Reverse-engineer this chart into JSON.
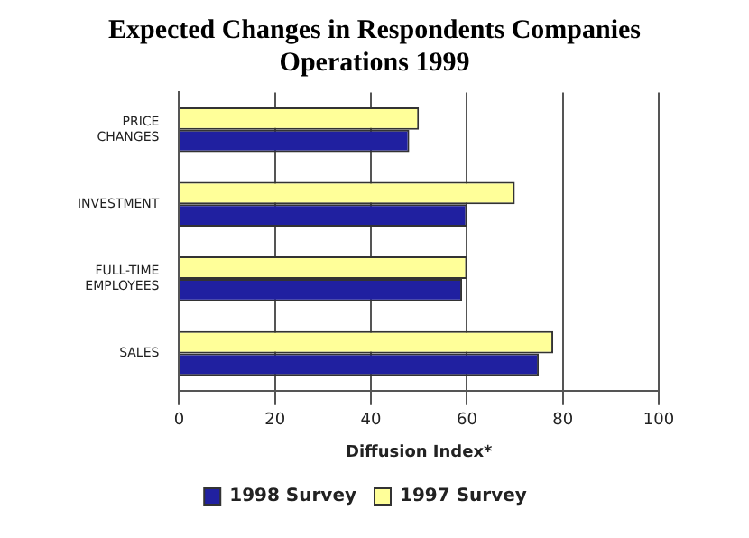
{
  "chart_data": {
    "type": "bar",
    "orientation": "horizontal",
    "title": "Expected Changes in Respondents Companies Operations 1999",
    "xlabel": "Diffusion Index*",
    "categories": [
      "PRICE CHANGES",
      "INVESTMENT",
      "FULL-TIME EMPLOYEES",
      "SALES"
    ],
    "series": [
      {
        "name": "1998 Survey",
        "color": "#2020a0",
        "values": [
          48,
          60,
          59,
          75
        ]
      },
      {
        "name": "1997 Survey",
        "color": "#ffff99",
        "values": [
          50,
          70,
          60,
          78
        ]
      }
    ],
    "xlim": [
      0,
      100
    ],
    "xticks": [
      0,
      20,
      40,
      60,
      80,
      100
    ],
    "grid": "x",
    "legend": "bottom"
  }
}
